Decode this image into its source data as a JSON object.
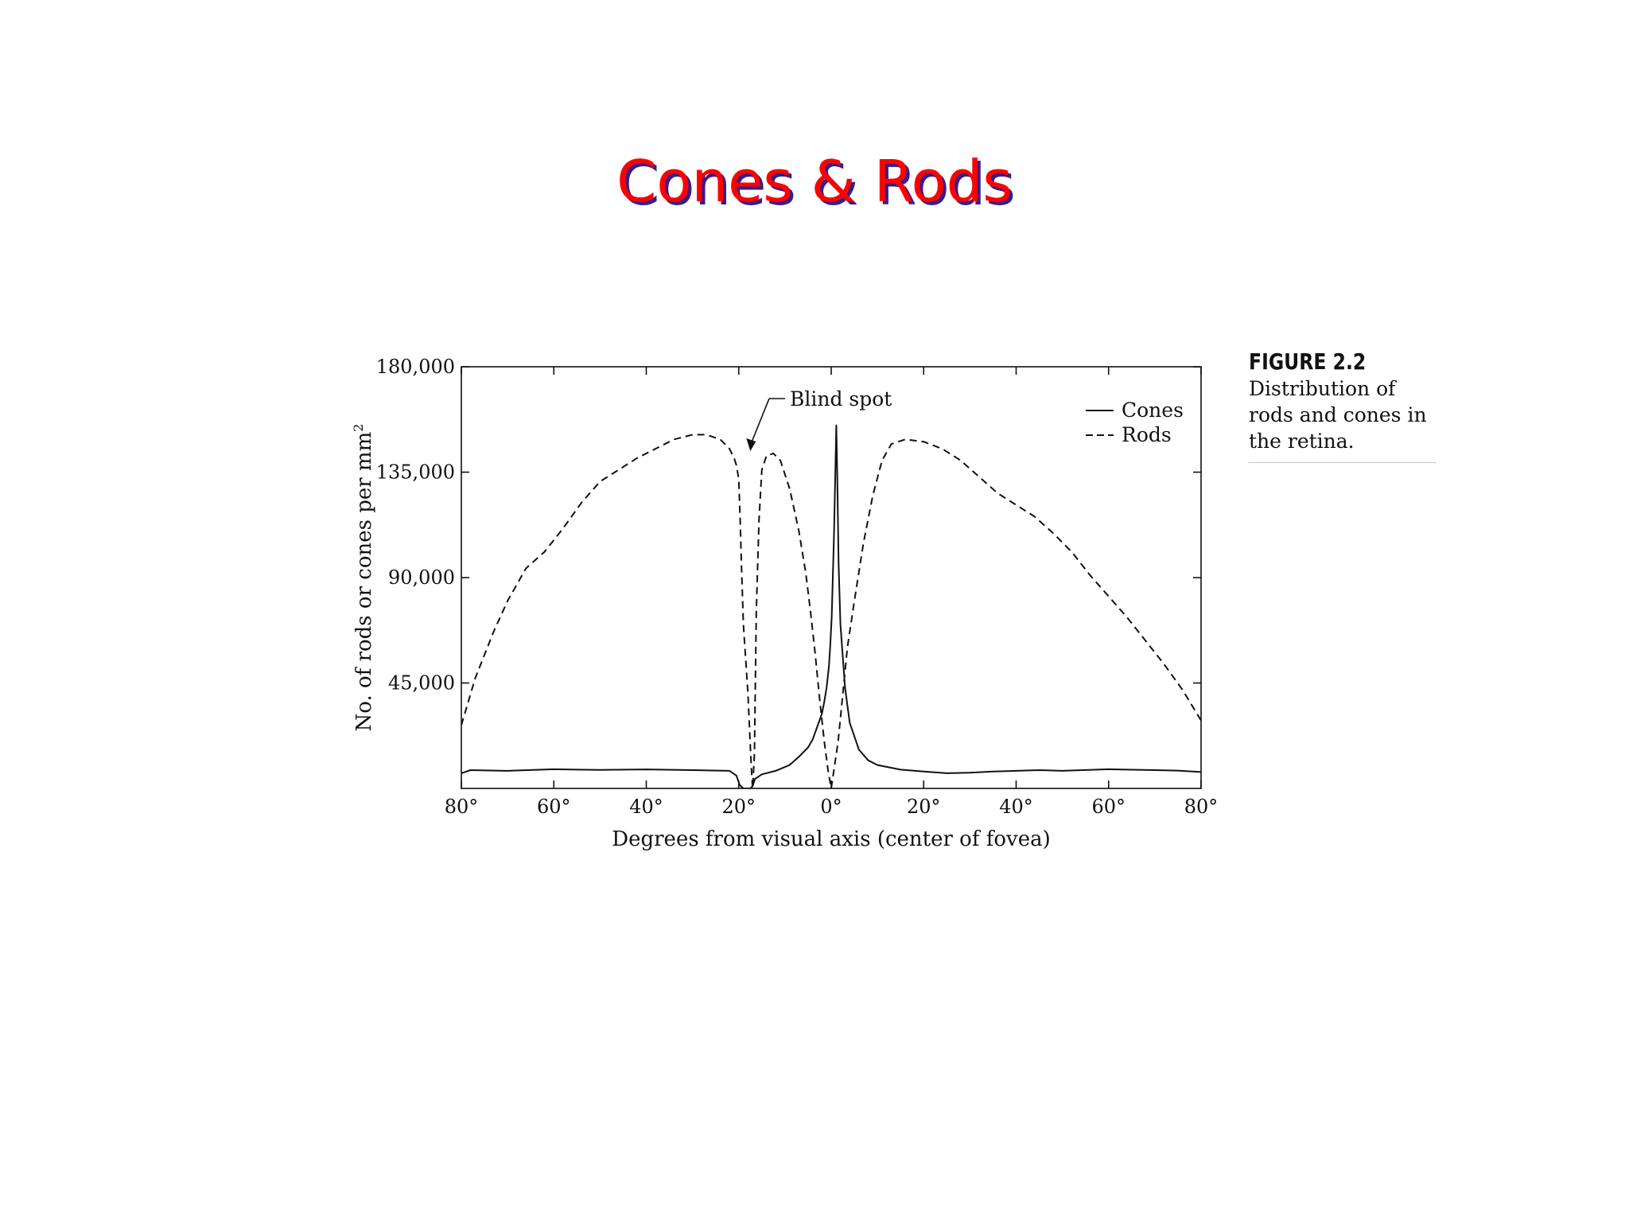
{
  "slide": {
    "title": "Cones & Rods"
  },
  "caption": {
    "figure_number": "FIGURE 2.2",
    "text": "Distribution of rods and cones in the retina."
  },
  "colors": {
    "title": "#ff0000",
    "title_shadow": "#3a1c88",
    "ink": "#111111"
  },
  "chart_data": {
    "type": "line",
    "title": "",
    "xlabel": "Degrees from visual axis (center of fovea)",
    "ylabel": "No. of rods or cones per mm",
    "ylabel_superscript": "2",
    "xlim": [
      -80,
      80
    ],
    "ylim": [
      0,
      180000
    ],
    "x_ticks": [
      -80,
      -60,
      -40,
      -20,
      0,
      20,
      40,
      60,
      80
    ],
    "x_tick_labels": [
      "80°",
      "60°",
      "40°",
      "20°",
      "0°",
      "20°",
      "40°",
      "60°",
      "80°"
    ],
    "y_ticks": [
      45000,
      90000,
      135000,
      180000
    ],
    "y_tick_labels": [
      "45,000",
      "90,000",
      "135,000",
      "180,000"
    ],
    "grid": false,
    "legend_position": "top-right",
    "annotations": [
      {
        "text": "Blind spot",
        "x": -17.5,
        "y": 144000
      }
    ],
    "series": [
      {
        "name": "Cones",
        "style": "solid",
        "x": [
          -80,
          -78,
          -70,
          -60,
          -55,
          -50,
          -40,
          -30,
          -22,
          -20.5,
          -19.8,
          -19,
          -17.5,
          -17,
          -16.5,
          -15,
          -12,
          -9,
          -7,
          -5,
          -4,
          -3,
          -2,
          -1.5,
          -1,
          -0.5,
          -0.2,
          0.1,
          0.3,
          0.6,
          0.9,
          1.1,
          1.3,
          1.6,
          2,
          3,
          4,
          6,
          8,
          10,
          15,
          20,
          25,
          30,
          35,
          40,
          45,
          50,
          60,
          70,
          75,
          80
        ],
        "y": [
          6500,
          7800,
          7500,
          8200,
          8000,
          7900,
          8100,
          7800,
          7500,
          5500,
          1500,
          0,
          0,
          1000,
          4000,
          6000,
          7500,
          10000,
          13500,
          17500,
          21000,
          26500,
          32000,
          37000,
          43000,
          52000,
          61000,
          73000,
          86000,
          108000,
          135000,
          155000,
          134000,
          96000,
          70000,
          43000,
          28000,
          16500,
          12000,
          10000,
          8000,
          7200,
          6500,
          6700,
          7200,
          7500,
          7800,
          7500,
          8200,
          7800,
          7600,
          7000
        ]
      },
      {
        "name": "Rods",
        "style": "dashed",
        "x": [
          -80,
          -77,
          -73,
          -70,
          -66,
          -62,
          -58,
          -54,
          -50,
          -46,
          -42,
          -38,
          -34,
          -30,
          -27,
          -24,
          -22,
          -21,
          -20.5,
          -20,
          -19.7,
          -19.4,
          -19,
          -18,
          -17.3,
          -17,
          -16.6,
          -16.2,
          -15.6,
          -15,
          -14,
          -12.5,
          -11,
          -9,
          -7,
          -5.5,
          -4.5,
          -3.5,
          -2.5,
          -1.5,
          -0.7,
          0,
          0.6,
          1.5,
          2.5,
          3.5,
          5,
          7,
          9,
          11,
          13,
          16,
          20,
          24,
          28,
          32,
          36,
          40,
          44,
          48,
          52,
          56,
          60,
          64,
          68,
          72,
          76,
          80
        ],
        "y": [
          27000,
          47000,
          67000,
          80000,
          94000,
          101000,
          111000,
          122000,
          131000,
          136000,
          141000,
          145000,
          149000,
          151000,
          151000,
          149000,
          145000,
          141000,
          138000,
          132000,
          115000,
          95000,
          70000,
          40000,
          10000,
          0,
          15000,
          75000,
          115000,
          136000,
          142000,
          143000,
          140000,
          128000,
          110000,
          92000,
          76000,
          58000,
          38000,
          20000,
          8000,
          0,
          8000,
          20000,
          40000,
          60000,
          80000,
          105000,
          125000,
          140000,
          147000,
          149000,
          148000,
          145000,
          140000,
          133000,
          126000,
          121000,
          116000,
          109000,
          101000,
          91000,
          82000,
          73000,
          63000,
          53000,
          42000,
          29000
        ]
      }
    ]
  }
}
